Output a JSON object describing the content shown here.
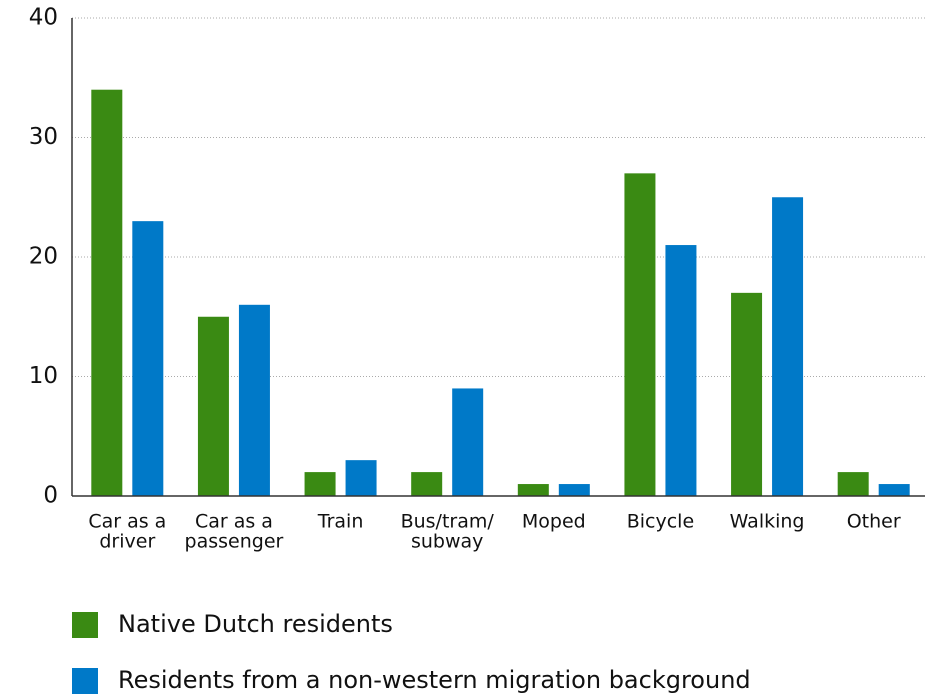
{
  "chart_data": {
    "type": "bar",
    "categories": [
      [
        "Car as a",
        "driver"
      ],
      [
        "Car as a",
        "passenger"
      ],
      [
        "Train"
      ],
      [
        "Bus/tram/",
        "subway"
      ],
      [
        "Moped"
      ],
      [
        "Bicycle"
      ],
      [
        "Walking"
      ],
      [
        "Other"
      ]
    ],
    "series": [
      {
        "name": "Native Dutch residents",
        "color": "#3a8a13",
        "values": [
          34,
          15,
          2,
          2,
          1,
          27,
          17,
          2
        ]
      },
      {
        "name": "Residents from a non-western migration background",
        "color": "#0079c8",
        "values": [
          23,
          16,
          3,
          9,
          1,
          21,
          25,
          1
        ]
      }
    ],
    "ylim": [
      0,
      40
    ],
    "yticks": [
      0,
      10,
      20,
      30,
      40
    ],
    "grid": true
  }
}
